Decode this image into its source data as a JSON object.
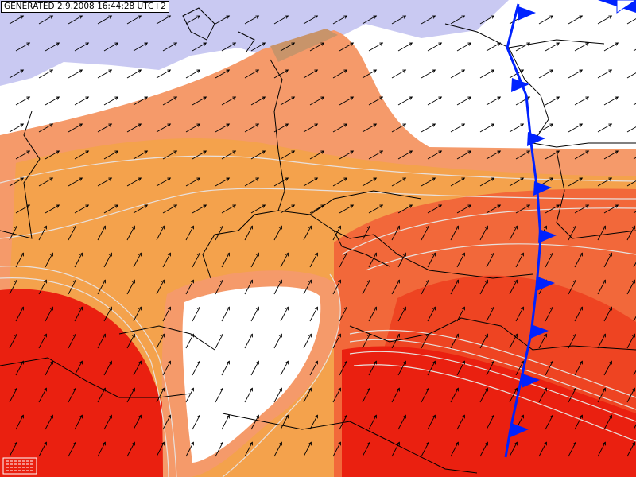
{
  "header": {
    "timestamp": "GENERATED 2.9.2008 16:44:28 UTC+2"
  }
}
